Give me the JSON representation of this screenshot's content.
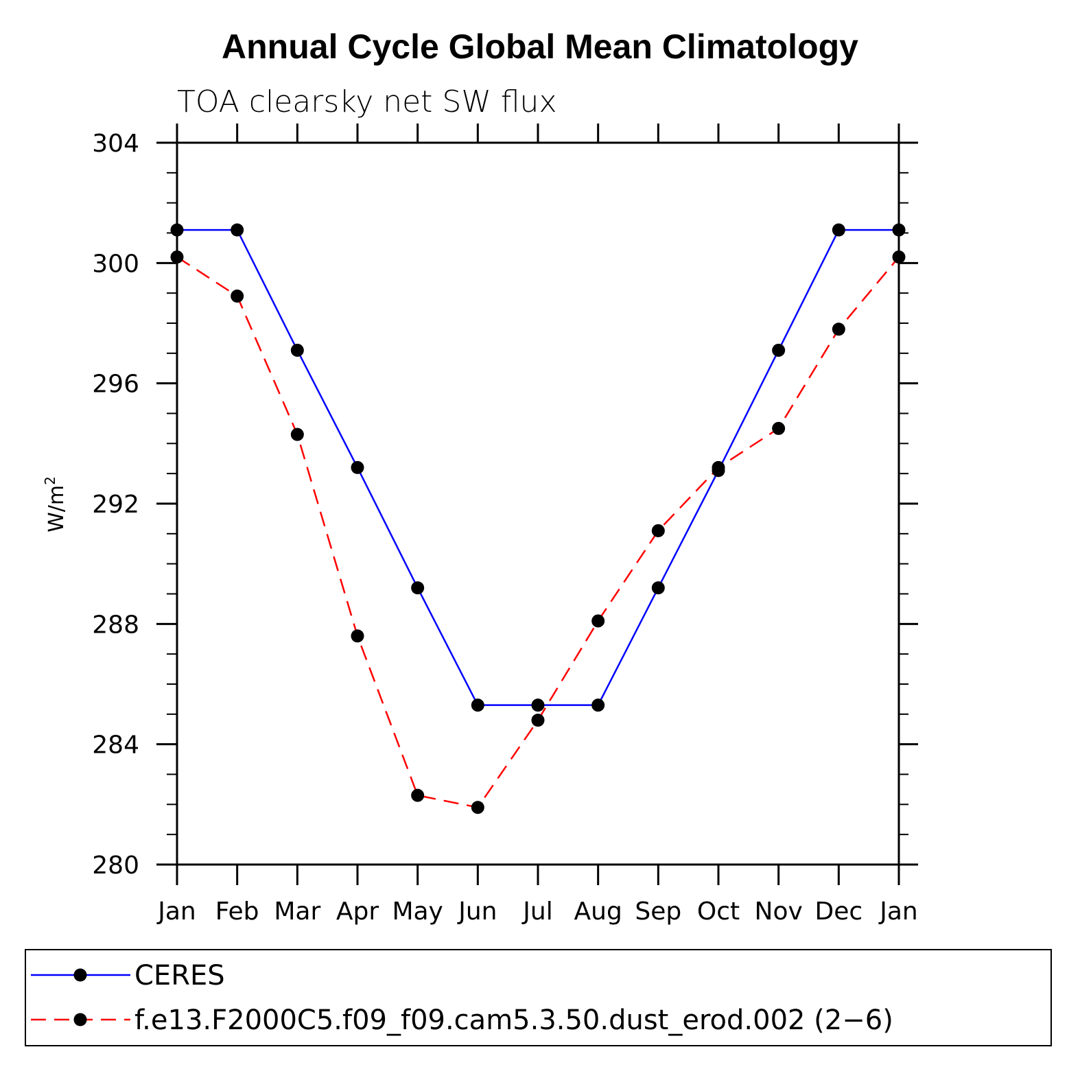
{
  "chart_data": {
    "type": "line",
    "title": "Annual Cycle Global Mean Climatology",
    "subtitle": "TOA clearsky net SW flux",
    "ylabel": "W/m",
    "ylabel_sup": "2",
    "xlabel": "",
    "categories": [
      "Jan",
      "Feb",
      "Mar",
      "Apr",
      "May",
      "Jun",
      "Jul",
      "Aug",
      "Sep",
      "Oct",
      "Nov",
      "Dec",
      "Jan"
    ],
    "ylim": [
      280,
      304
    ],
    "yticks": [
      280,
      284,
      288,
      292,
      296,
      300,
      304
    ],
    "ytick_labels": [
      "280",
      "284",
      "288",
      "292",
      "296",
      "300",
      "304"
    ],
    "series": [
      {
        "name": "CERES",
        "color": "#0000ff",
        "style": "solid",
        "values": [
          301.1,
          301.1,
          297.1,
          293.2,
          289.2,
          285.3,
          285.3,
          285.3,
          289.2,
          293.1,
          297.1,
          301.1,
          301.1
        ]
      },
      {
        "name": "f.e13.F2000C5.f09_f09.cam5.3.50.dust_erod.002 (2−6)",
        "color": "#ff0000",
        "style": "dashed",
        "values": [
          300.2,
          298.9,
          294.3,
          287.6,
          282.3,
          281.9,
          284.8,
          288.1,
          291.1,
          293.2,
          294.5,
          297.8,
          300.2
        ]
      }
    ],
    "legend_position": "bottom"
  }
}
